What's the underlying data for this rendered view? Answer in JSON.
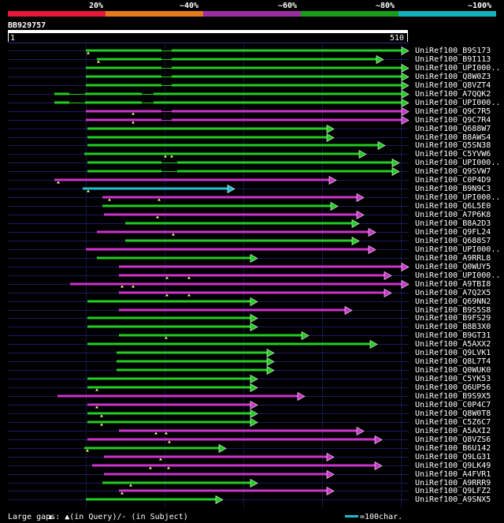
{
  "header": {
    "percent_labels": [
      "20%",
      "~40%",
      "~60%",
      "~80%",
      "~100%"
    ],
    "percent_colors": [
      "#e8173c",
      "#e47a1e",
      "#9c2fa0",
      "#199c1b",
      "#13b3bd"
    ],
    "query_id": "BB929757",
    "scale_start": "1",
    "scale_end": "510"
  },
  "colors": {
    "green": "#22cc22",
    "magenta": "#cc33cc",
    "cyan": "#22bbcc",
    "navy": "#1a1a5e",
    "grid": "#2a2a80"
  },
  "query_length": 510,
  "hits": [
    {
      "name": "UniRef100_B9S173",
      "color": "green",
      "start": 109,
      "end": 519,
      "gaps": [
        205,
        218
      ],
      "marks": [
        112
      ]
    },
    {
      "name": "UniRef100_B9I113",
      "color": "green",
      "start": 123,
      "end": 487,
      "gaps": [
        205,
        218
      ],
      "marks": [
        125
      ]
    },
    {
      "name": "UniRef100_UPI000..",
      "color": "green",
      "start": 109,
      "end": 519,
      "gaps": [
        205,
        218
      ],
      "marks": []
    },
    {
      "name": "UniRef100_Q8W0Z3",
      "color": "green",
      "start": 109,
      "end": 519,
      "gaps": [
        205,
        218
      ],
      "marks": []
    },
    {
      "name": "UniRef100_Q8VZT4",
      "color": "green",
      "start": 109,
      "end": 519,
      "gaps": [
        205,
        218
      ],
      "marks": []
    },
    {
      "name": "UniRef100_A7QQK2",
      "color": "green",
      "start": 69,
      "end": 519,
      "gaps": [
        88,
        108,
        180,
        195
      ],
      "marks": []
    },
    {
      "name": "UniRef100_UPI000..",
      "color": "green",
      "start": 69,
      "end": 519,
      "gaps": [
        88,
        108,
        180,
        195
      ],
      "marks": []
    },
    {
      "name": "UniRef100_Q9C7R5",
      "color": "magenta",
      "start": 109,
      "end": 519,
      "gaps": [
        205,
        218
      ],
      "marks": [
        169
      ]
    },
    {
      "name": "UniRef100_Q9C7R4",
      "color": "magenta",
      "start": 109,
      "end": 519,
      "gaps": [
        205,
        218
      ],
      "marks": [
        169
      ]
    },
    {
      "name": "UniRef100_Q688W7",
      "color": "green",
      "start": 111,
      "end": 424,
      "gaps": [],
      "marks": []
    },
    {
      "name": "UniRef100_B8AWS4",
      "color": "green",
      "start": 111,
      "end": 424,
      "gaps": [],
      "marks": []
    },
    {
      "name": "UniRef100_Q5SN38",
      "color": "green",
      "start": 111,
      "end": 489,
      "gaps": [],
      "marks": []
    },
    {
      "name": "UniRef100_C5YVW6",
      "color": "green",
      "start": 107,
      "end": 465,
      "gaps": [],
      "marks": [
        210,
        218
      ]
    },
    {
      "name": "UniRef100_UPI000..",
      "color": "green",
      "start": 111,
      "end": 507,
      "gaps": [
        205,
        225
      ],
      "marks": []
    },
    {
      "name": "UniRef100_Q9SVW7",
      "color": "green",
      "start": 111,
      "end": 507,
      "gaps": [
        205,
        225
      ],
      "marks": []
    },
    {
      "name": "UniRef100_C0P4D9",
      "color": "magenta",
      "start": 69,
      "end": 427,
      "gaps": [],
      "marks": [
        74
      ]
    },
    {
      "name": "UniRef100_B9N9C3",
      "color": "cyan",
      "start": 105,
      "end": 298,
      "gaps": [],
      "marks": [
        112
      ]
    },
    {
      "name": "UniRef100_UPI000..",
      "color": "magenta",
      "start": 130,
      "end": 462,
      "gaps": [],
      "marks": [
        139,
        202
      ]
    },
    {
      "name": "UniRef100_Q6L5E0",
      "color": "green",
      "start": 130,
      "end": 429,
      "gaps": [],
      "marks": []
    },
    {
      "name": "UniRef100_A7P6K8",
      "color": "magenta",
      "start": 132,
      "end": 462,
      "gaps": [],
      "marks": [
        200
      ]
    },
    {
      "name": "UniRef100_B8A2D3",
      "color": "green",
      "start": 159,
      "end": 456,
      "gaps": [],
      "marks": []
    },
    {
      "name": "UniRef100_Q9FL24",
      "color": "magenta",
      "start": 123,
      "end": 477,
      "gaps": [],
      "marks": [
        220
      ]
    },
    {
      "name": "UniRef100_Q688S7",
      "color": "green",
      "start": 159,
      "end": 456,
      "gaps": [],
      "marks": []
    },
    {
      "name": "UniRef100_UPI000..",
      "color": "magenta",
      "start": 109,
      "end": 477,
      "gaps": [],
      "marks": []
    },
    {
      "name": "UniRef100_A9RRL8",
      "color": "green",
      "start": 123,
      "end": 327,
      "gaps": [],
      "marks": []
    },
    {
      "name": "UniRef100_Q0WUY5",
      "color": "magenta",
      "start": 151,
      "end": 519,
      "gaps": [],
      "marks": []
    },
    {
      "name": "UniRef100_UPI000..",
      "color": "magenta",
      "start": 151,
      "end": 497,
      "gaps": [],
      "marks": [
        212,
        240
      ]
    },
    {
      "name": "UniRef100_A9TBI8",
      "color": "magenta",
      "start": 89,
      "end": 519,
      "gaps": [],
      "marks": [
        155,
        169
      ]
    },
    {
      "name": "UniRef100_A7Q2X5",
      "color": "magenta",
      "start": 151,
      "end": 497,
      "gaps": [],
      "marks": [
        212,
        240
      ]
    },
    {
      "name": "UniRef100_Q69NN2",
      "color": "green",
      "start": 111,
      "end": 327,
      "gaps": [],
      "marks": []
    },
    {
      "name": "UniRef100_B9S5S8",
      "color": "magenta",
      "start": 151,
      "end": 447,
      "gaps": [],
      "marks": []
    },
    {
      "name": "UniRef100_B9FS29",
      "color": "green",
      "start": 111,
      "end": 327,
      "gaps": [],
      "marks": []
    },
    {
      "name": "UniRef100_B8B3X0",
      "color": "green",
      "start": 111,
      "end": 327,
      "gaps": [],
      "marks": []
    },
    {
      "name": "UniRef100_B9GT31",
      "color": "green",
      "start": 151,
      "end": 392,
      "gaps": [],
      "marks": [
        211
      ]
    },
    {
      "name": "UniRef100_A5AXX2",
      "color": "green",
      "start": 111,
      "end": 479,
      "gaps": [],
      "marks": []
    },
    {
      "name": "UniRef100_Q9LVK1",
      "color": "green",
      "start": 148,
      "end": 348,
      "gaps": [],
      "marks": []
    },
    {
      "name": "UniRef100_Q8L7T4",
      "color": "green",
      "start": 148,
      "end": 348,
      "gaps": [],
      "marks": []
    },
    {
      "name": "UniRef100_Q0WUK0",
      "color": "green",
      "start": 148,
      "end": 348,
      "gaps": [],
      "marks": []
    },
    {
      "name": "UniRef100_C5YK53",
      "color": "green",
      "start": 111,
      "end": 327,
      "gaps": [],
      "marks": []
    },
    {
      "name": "UniRef100_Q6UP56",
      "color": "green",
      "start": 111,
      "end": 327,
      "gaps": [],
      "marks": [
        123
      ]
    },
    {
      "name": "UniRef100_B9S9X5",
      "color": "magenta",
      "start": 73,
      "end": 387,
      "gaps": [],
      "marks": []
    },
    {
      "name": "UniRef100_C0P4C7",
      "color": "magenta",
      "start": 111,
      "end": 327,
      "gaps": [],
      "marks": [
        123
      ]
    },
    {
      "name": "UniRef100_Q8W0T8",
      "color": "green",
      "start": 111,
      "end": 327,
      "gaps": [],
      "marks": [
        129
      ]
    },
    {
      "name": "UniRef100_C5Z6C7",
      "color": "green",
      "start": 111,
      "end": 327,
      "gaps": [],
      "marks": [
        129
      ]
    },
    {
      "name": "UniRef100_A5AXI2",
      "color": "magenta",
      "start": 151,
      "end": 462,
      "gaps": [],
      "marks": [
        198,
        211
      ]
    },
    {
      "name": "UniRef100_Q8VZS6",
      "color": "magenta",
      "start": 111,
      "end": 485,
      "gaps": [],
      "marks": [
        215
      ]
    },
    {
      "name": "UniRef100_B6U142",
      "color": "green",
      "start": 107,
      "end": 287,
      "gaps": [],
      "marks": [
        111
      ]
    },
    {
      "name": "UniRef100_Q9LG31",
      "color": "magenta",
      "start": 132,
      "end": 424,
      "gaps": [],
      "marks": [
        204
      ]
    },
    {
      "name": "UniRef100_Q9LK49",
      "color": "magenta",
      "start": 117,
      "end": 485,
      "gaps": [],
      "marks": [
        191,
        214
      ]
    },
    {
      "name": "UniRef100_A4FVR1",
      "color": "magenta",
      "start": 132,
      "end": 424,
      "gaps": [],
      "marks": []
    },
    {
      "name": "UniRef100_A9RRR9",
      "color": "green",
      "start": 130,
      "end": 327,
      "gaps": [],
      "marks": [
        166
      ]
    },
    {
      "name": "UniRef100_Q9LFZ2",
      "color": "magenta",
      "start": 151,
      "end": 424,
      "gaps": [],
      "marks": [
        155
      ]
    },
    {
      "name": "UniRef100_A9SNX5",
      "color": "green",
      "start": 109,
      "end": 283,
      "gaps": [],
      "marks": []
    }
  ],
  "footer": {
    "gaps_text": "Large gaps: ▲(in Query)/- (in Subject)",
    "scale_text": "=100char."
  }
}
